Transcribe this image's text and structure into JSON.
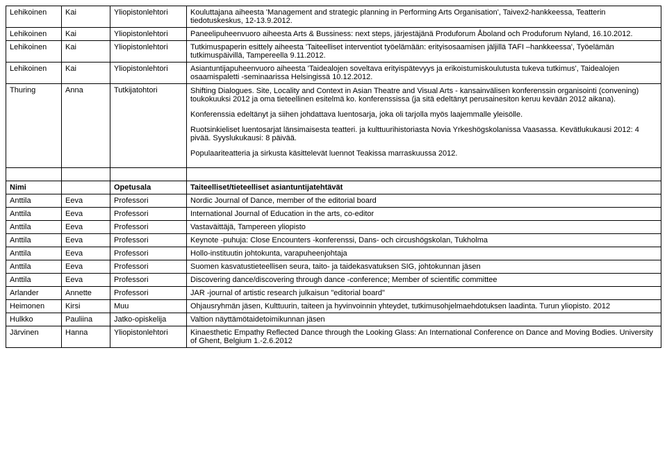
{
  "table1": {
    "rows": [
      [
        "Lehikoinen",
        "Kai",
        "Yliopistonlehtori",
        "Kouluttajana aiheesta 'Management and strategic planning in Performing Arts Organisation', Taivex2-hankkeessa, Teatterin tiedotuskeskus, 12-13.9.2012."
      ],
      [
        "Lehikoinen",
        "Kai",
        "Yliopistonlehtori",
        "Paneelipuheenvuoro aiheesta Arts & Bussiness: next steps, järjestäjänä Produforum Åboland och Produforum Nyland, 16.10.2012."
      ],
      [
        "Lehikoinen",
        "Kai",
        "Yliopistonlehtori",
        "Tutkimuspaperin esittely aiheesta 'Taiteelliset interventiot työelämään: erityisosaamisen jäljillä TAFI –hankkeessa', Työelämän tutkimuspäivillä, Tampereella 9.11.2012."
      ],
      [
        "Lehikoinen",
        "Kai",
        "Yliopistonlehtori",
        "Asiantuntijapuheenvuoro aiheesta 'Taidealojen soveltava erityispätevyys ja erikoistumiskoulutusta tukeva tutkimus', Taidealojen osaamispaletti -seminaarissa Helsingissä 10.12.2012."
      ]
    ]
  },
  "thuring_row": {
    "c1": "Thuring",
    "c2": "Anna",
    "c3": "Tutkijatohtori",
    "para1": "Shifting Dialogues. Site, Locality and Context in Asian Theatre and Visual Arts - kansainvälisen konferenssin organisointi (convening) toukokuuksi 2012 ja oma tieteellinen esitelmä ko. konferenssissa (ja sitä edeltänyt perusainesiton keruu kevään 2012 aikana).",
    "para2": "Konferenssia edeltänyt ja siihen johdattava luentosarja, joka oli tarjolla myös laajemmalle yleisölle.",
    "para3": "Ruotsinkieliset luentosarjat länsimaisesta teatteri. ja kulttuurihistoriasta Novia Yrkeshögskolanissa Vaasassa. Kevätlukukausi 2012: 4 pivää. Syyslukukausi: 8 päivää.",
    "para4": "Populaariteatteria ja sirkusta käsittelevät luennot Teakissa marraskuussa 2012."
  },
  "table2": {
    "header": [
      "Nimi",
      "Opetusala",
      "Taiteelliset/tieteelliset asiantuntijatehtävät"
    ],
    "rows": [
      [
        "Anttila",
        "Eeva",
        "Professori",
        "Nordic Journal of Dance, member of the editorial board"
      ],
      [
        "Anttila",
        "Eeva",
        "Professori",
        "International Journal of Education in the arts, co-editor"
      ],
      [
        "Anttila",
        "Eeva",
        "Professori",
        "Vastaväittäjä, Tampereen yliopisto"
      ],
      [
        "Anttila",
        "Eeva",
        "Professori",
        "Keynote -puhuja: Close Encounters -konferenssi, Dans- och circushögskolan, Tukholma"
      ],
      [
        "Anttila",
        "Eeva",
        "Professori",
        "Hollo-instituutin johtokunta, varapuheenjohtaja"
      ],
      [
        "Anttila",
        "Eeva",
        "Professori",
        "Suomen kasvatustieteellisen seura, taito- ja taidekasvatuksen SIG, johtokunnan jäsen"
      ],
      [
        "Anttila",
        "Eeva",
        "Professori",
        "Discovering dance/discovering through dance -conference; Member of scientific committee"
      ],
      [
        "Arlander",
        "Annette",
        "Professori",
        "JAR -journal of artistic research julkaisun \"editorial board\""
      ],
      [
        "Heimonen",
        "Kirsi",
        "Muu",
        "Ohjausryhmän jäsen, Kulttuurin, taiteen ja hyvinvoinnin yhteydet, tutkimusohjelmaehdotuksen laadinta. Turun yliopisto. 2012"
      ],
      [
        "Hulkko",
        "Pauliina",
        "Jatko-opiskelija",
        "Valtion näyttämötaidetoimikunnan jäsen"
      ],
      [
        "Järvinen",
        "Hanna",
        "Yliopistonlehtori",
        "Kinaesthetic Empathy Reflected Dance through the Looking Glass: An International Conference on Dance and Moving Bodies. University of Ghent, Belgium 1.-2.6.2012"
      ]
    ]
  }
}
